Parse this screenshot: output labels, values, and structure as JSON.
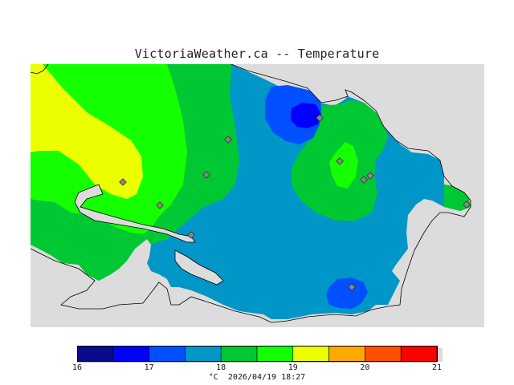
{
  "title": "VictoriaWeather.ca -- Temperature",
  "legend": {
    "unit": "°C",
    "timestamp": "2026/04/19 18:27",
    "ticks": [
      "16",
      "17",
      "18",
      "19",
      "20",
      "21"
    ],
    "colors": [
      "#0a0a8c",
      "#0000ff",
      "#0050ff",
      "#0096c8",
      "#00c832",
      "#14ff00",
      "#ecff00",
      "#ffaa00",
      "#ff5000",
      "#ff0000"
    ]
  },
  "colors": {
    "background": "#dcdcdc",
    "land_18_18_5": "#00c832",
    "water": "#dcdcdc"
  }
}
